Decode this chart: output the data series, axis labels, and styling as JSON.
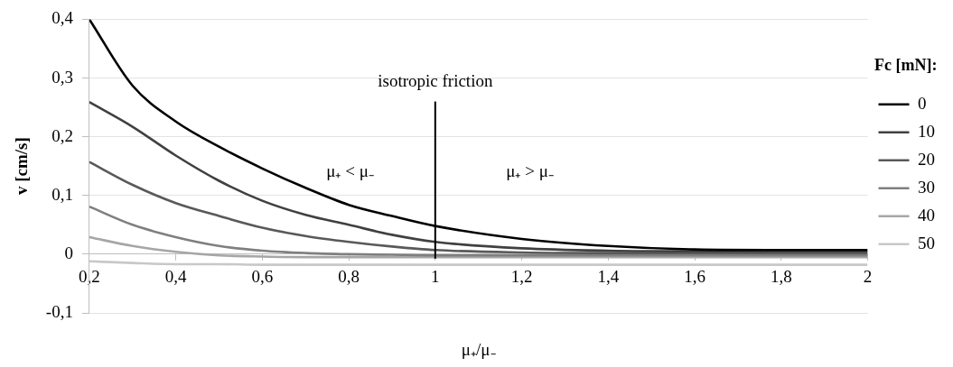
{
  "chart_data": {
    "type": "line",
    "xlabel": "μ₊/μ₋",
    "ylabel": "v [cm/s]",
    "legend_title": "Fc [mN]:",
    "legend": "right",
    "grid": "y",
    "marker": "none",
    "line_style": "solid",
    "x": [
      0.2,
      0.3,
      0.4,
      0.5,
      0.6,
      0.7,
      0.8,
      0.9,
      1.0,
      1.2,
      1.4,
      1.6,
      1.8,
      2.0
    ],
    "series": [
      {
        "name": "0",
        "color": "#000000",
        "values": [
          0.4,
          0.287,
          0.226,
          0.183,
          0.146,
          0.113,
          0.084,
          0.065,
          0.048,
          0.026,
          0.014,
          0.008,
          0.007,
          0.007
        ]
      },
      {
        "name": "10",
        "color": "#404040",
        "values": [
          0.259,
          0.217,
          0.168,
          0.125,
          0.091,
          0.067,
          0.05,
          0.033,
          0.021,
          0.01,
          0.006,
          0.005,
          0.005,
          0.005
        ]
      },
      {
        "name": "20",
        "color": "#595959",
        "values": [
          0.157,
          0.118,
          0.087,
          0.065,
          0.045,
          0.031,
          0.021,
          0.013,
          0.007,
          0.003,
          0.002,
          0.002,
          0.002,
          0.002
        ]
      },
      {
        "name": "30",
        "color": "#7f7f7f",
        "values": [
          0.081,
          0.05,
          0.029,
          0.014,
          0.006,
          0.002,
          0.0,
          -0.001,
          -0.002,
          -0.002,
          -0.002,
          -0.002,
          -0.002,
          -0.002
        ]
      },
      {
        "name": "40",
        "color": "#a6a6a6",
        "values": [
          0.029,
          0.014,
          0.004,
          -0.002,
          -0.004,
          -0.005,
          -0.005,
          -0.005,
          -0.005,
          -0.005,
          -0.005,
          -0.005,
          -0.005,
          -0.005
        ]
      },
      {
        "name": "50",
        "color": "#c8c8c8",
        "values": [
          -0.012,
          -0.015,
          -0.017,
          -0.017,
          -0.018,
          -0.018,
          -0.018,
          -0.018,
          -0.018,
          -0.018,
          -0.018,
          -0.018,
          -0.018,
          -0.018
        ]
      }
    ],
    "xlim": [
      0.2,
      2
    ],
    "xticks": [
      {
        "value": 0.2,
        "label": "0,2"
      },
      {
        "value": 0.4,
        "label": "0,4"
      },
      {
        "value": 0.6,
        "label": "0,6"
      },
      {
        "value": 0.8,
        "label": "0,8"
      },
      {
        "value": 1,
        "label": "1"
      },
      {
        "value": 1.2,
        "label": "1,2"
      },
      {
        "value": 1.4,
        "label": "1,4"
      },
      {
        "value": 1.6,
        "label": "1,6"
      },
      {
        "value": 1.8,
        "label": "1,8"
      },
      {
        "value": 2,
        "label": "2"
      }
    ],
    "ylim": [
      -0.1,
      0.4
    ],
    "yticks": [
      {
        "value": -0.1,
        "label": "-0,1"
      },
      {
        "value": 0,
        "label": "0"
      },
      {
        "value": 0.1,
        "label": "0,1"
      },
      {
        "value": 0.2,
        "label": "0,2"
      },
      {
        "value": 0.3,
        "label": "0,3"
      },
      {
        "value": 0.4,
        "label": "0,4"
      }
    ],
    "ref_lines": [
      {
        "axis": "x",
        "value": 1,
        "label": "isotropic friction",
        "color": "#000000"
      }
    ],
    "annotations": [
      "μ₊ < μ₋",
      "μ₊ > μ₋"
    ]
  }
}
